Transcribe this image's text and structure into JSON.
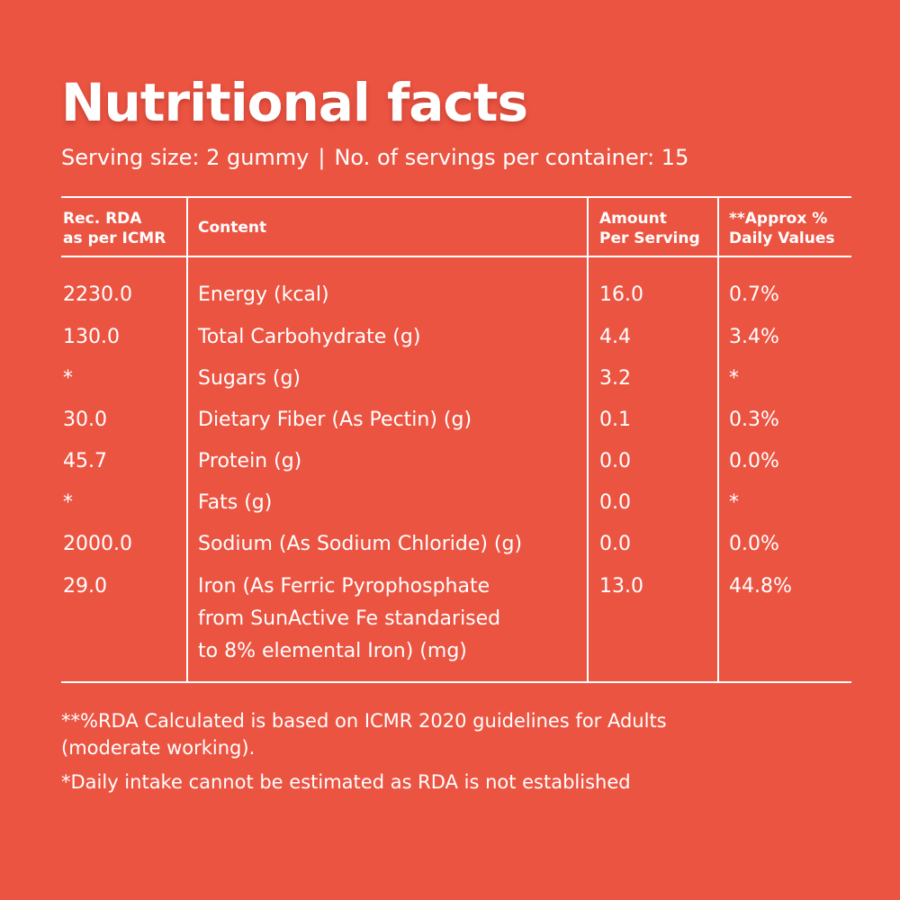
{
  "header": {
    "title": "Nutritional facts",
    "serving_size": "Serving size: 2 gummy",
    "separator": "|",
    "servings_per_container": "No. of servings per container: 15"
  },
  "table": {
    "columns": [
      {
        "line1": "Rec. RDA",
        "line2": "as per ICMR"
      },
      {
        "line1": "Content",
        "line2": ""
      },
      {
        "line1": "Amount",
        "line2": "Per Serving"
      },
      {
        "line1": "**Approx %",
        "line2": "Daily Values"
      }
    ],
    "rows": [
      {
        "rda": "2230.0",
        "content": [
          "Energy (kcal)"
        ],
        "amount": "16.0",
        "dv": "0.7%"
      },
      {
        "rda": "130.0",
        "content": [
          "Total Carbohydrate (g)"
        ],
        "amount": "4.4",
        "dv": "3.4%"
      },
      {
        "rda": "*",
        "content": [
          "Sugars (g)"
        ],
        "amount": "3.2",
        "dv": "*"
      },
      {
        "rda": "30.0",
        "content": [
          "Dietary Fiber (As Pectin) (g)"
        ],
        "amount": "0.1",
        "dv": "0.3%"
      },
      {
        "rda": "45.7",
        "content": [
          "Protein (g)"
        ],
        "amount": "0.0",
        "dv": "0.0%"
      },
      {
        "rda": "*",
        "content": [
          "Fats (g)"
        ],
        "amount": "0.0",
        "dv": "*"
      },
      {
        "rda": "2000.0",
        "content": [
          "Sodium (As Sodium Chloride) (g)"
        ],
        "amount": "0.0",
        "dv": "0.0%"
      },
      {
        "rda": "29.0",
        "content": [
          "Iron (As Ferric Pyrophosphate",
          "from SunActive Fe standarised",
          "to 8% elemental Iron) (mg)"
        ],
        "amount": "13.0",
        "dv": "44.8%"
      }
    ]
  },
  "footnotes": {
    "note1_line1": "**%RDA Calculated is based on ICMR 2020 guidelines for Adults",
    "note1_line2": "(moderate working).",
    "note2": "*Daily intake cannot be estimated as RDA is not established"
  },
  "colors": {
    "background": "#EC5442",
    "text": "#FFFFFF"
  }
}
